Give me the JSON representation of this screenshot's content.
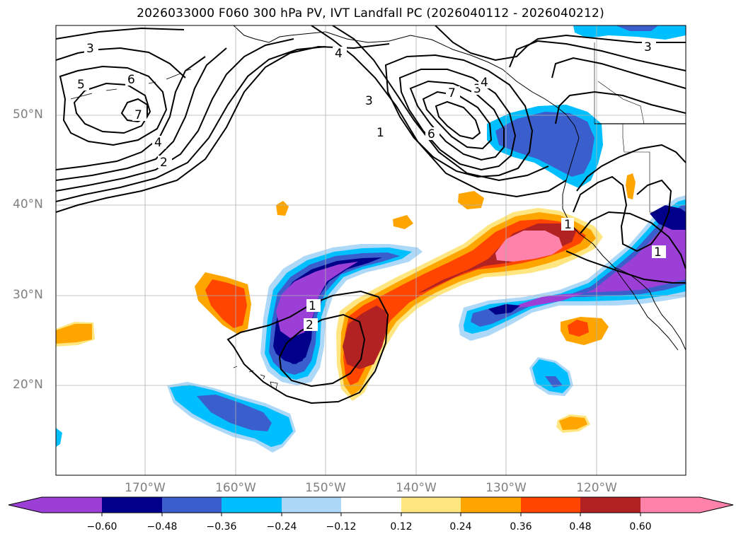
{
  "title": "2026033000 F060 300 hPa PV, IVT Landfall PC (2026040112 - 2026040212)",
  "map": {
    "lat_labels": [
      "50°N",
      "40°N",
      "30°N",
      "20°N"
    ],
    "lon_labels": [
      "170°W",
      "160°W",
      "150°W",
      "140°W",
      "130°W",
      "120°W"
    ],
    "contour_labels": [
      "3",
      "5",
      "6",
      "7",
      "4",
      "2",
      "4",
      "3",
      "1",
      "7",
      "6",
      "3",
      "4",
      "3",
      "1",
      "1",
      "2",
      "1"
    ]
  },
  "colorbar": {
    "tick_labels": [
      "−0.60",
      "−0.48",
      "−0.36",
      "−0.24",
      "−0.12",
      "0.12",
      "0.24",
      "0.36",
      "0.48",
      "0.60"
    ],
    "colors": [
      "#9b3fd6",
      "#00008b",
      "#3a5fcd",
      "#00bfff",
      "#add8f7",
      "#ffffff",
      "#ffe680",
      "#ffa500",
      "#ff4500",
      "#b22222",
      "#ff82ab",
      "#ff82ab"
    ]
  }
}
